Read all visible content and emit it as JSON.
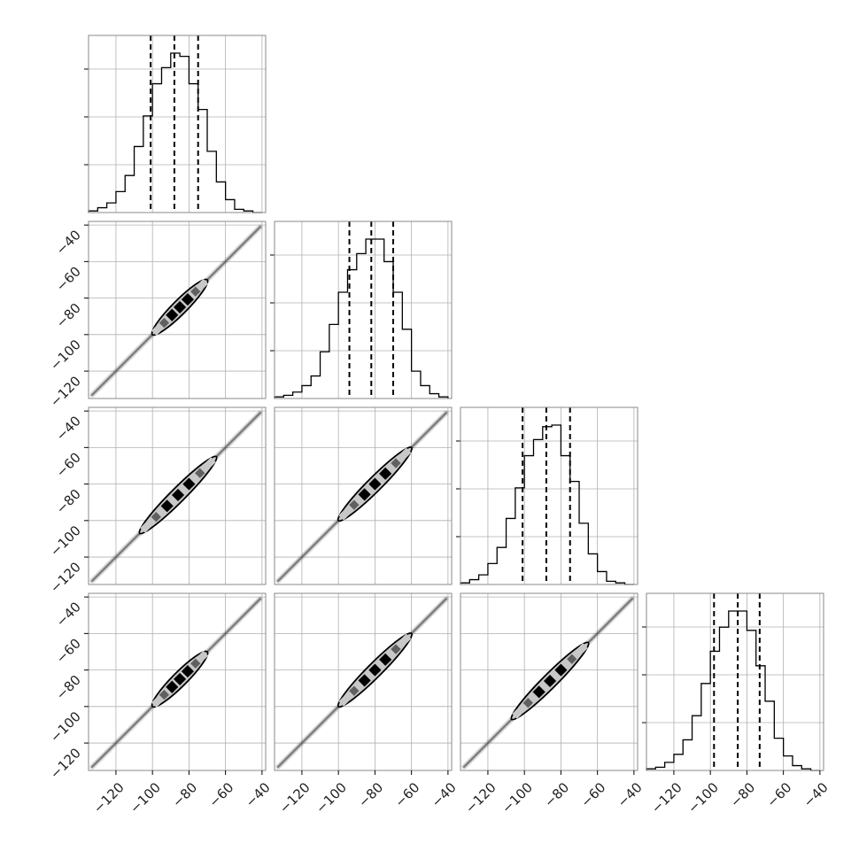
{
  "chart_data": {
    "type": "corner",
    "n_parameters": 4,
    "grid": true,
    "axis_range": [
      -135,
      -38
    ],
    "ticks": [
      -120,
      -100,
      -80,
      -60,
      -40
    ],
    "tick_labels": [
      "−120",
      "−100",
      "−80",
      "−60",
      "−40"
    ],
    "histograms": [
      {
        "bin_edges": [
          -135,
          -130,
          -125,
          -120,
          -115,
          -110,
          -105,
          -100,
          -95,
          -90,
          -85,
          -80,
          -75,
          -70,
          -65,
          -60,
          -55,
          -50,
          -45,
          -40
        ],
        "counts": [
          0.01,
          0.03,
          0.06,
          0.13,
          0.23,
          0.41,
          0.6,
          0.8,
          0.9,
          0.99,
          0.97,
          0.8,
          0.64,
          0.38,
          0.19,
          0.08,
          0.02,
          0.01,
          0
        ],
        "quantiles": [
          -101,
          -88,
          -75
        ]
      },
      {
        "bin_edges": [
          -135,
          -130,
          -125,
          -120,
          -115,
          -110,
          -105,
          -100,
          -95,
          -90,
          -85,
          -80,
          -75,
          -70,
          -65,
          -60,
          -55,
          -50,
          -45,
          -40
        ],
        "counts": [
          0.01,
          0.02,
          0.04,
          0.08,
          0.14,
          0.29,
          0.46,
          0.66,
          0.8,
          0.9,
          0.99,
          0.99,
          0.85,
          0.66,
          0.43,
          0.17,
          0.08,
          0.03,
          0.01
        ],
        "quantiles": [
          -94,
          -82,
          -70
        ]
      },
      {
        "bin_edges": [
          -135,
          -130,
          -125,
          -120,
          -115,
          -110,
          -105,
          -100,
          -95,
          -90,
          -85,
          -80,
          -75,
          -70,
          -65,
          -60,
          -55,
          -50,
          -45,
          -40
        ],
        "counts": [
          0.01,
          0.03,
          0.06,
          0.13,
          0.23,
          0.41,
          0.6,
          0.8,
          0.9,
          0.98,
          0.99,
          0.8,
          0.64,
          0.38,
          0.19,
          0.08,
          0.02,
          0.01,
          0
        ],
        "quantiles": [
          -101,
          -88,
          -75
        ]
      },
      {
        "bin_edges": [
          -135,
          -130,
          -125,
          -120,
          -115,
          -110,
          -105,
          -100,
          -95,
          -90,
          -85,
          -80,
          -75,
          -70,
          -65,
          -60,
          -55,
          -50,
          -45,
          -40
        ],
        "counts": [
          0.01,
          0.02,
          0.05,
          0.1,
          0.19,
          0.34,
          0.54,
          0.74,
          0.89,
          0.99,
          0.99,
          0.87,
          0.65,
          0.43,
          0.2,
          0.09,
          0.03,
          0.01,
          0
        ],
        "quantiles": [
          -98,
          -85,
          -73
        ]
      }
    ],
    "joint_distributions": [
      {
        "row": 1,
        "col": 0,
        "center": [
          -89,
          -82
        ],
        "x_span": [
          -100,
          -70
        ]
      },
      {
        "row": 2,
        "col": 0,
        "center": [
          -89,
          -88
        ],
        "x_span": [
          -107,
          -65
        ]
      },
      {
        "row": 2,
        "col": 1,
        "center": [
          -82,
          -88
        ],
        "x_span": [
          -100,
          -60
        ]
      },
      {
        "row": 3,
        "col": 0,
        "center": [
          -89,
          -85
        ],
        "x_span": [
          -100,
          -70
        ]
      },
      {
        "row": 3,
        "col": 1,
        "center": [
          -82,
          -85
        ],
        "x_span": [
          -100,
          -60
        ]
      },
      {
        "row": 3,
        "col": 2,
        "center": [
          -88,
          -85
        ],
        "x_span": [
          -107,
          -65
        ]
      }
    ]
  },
  "colors": {
    "line": "#000000",
    "grid": "#b0b0b0",
    "frame": "#888888",
    "density_dark": "#000000",
    "density_mid": "#606060",
    "density_light": "#c8c8c8",
    "outer_samples": "#707070"
  }
}
